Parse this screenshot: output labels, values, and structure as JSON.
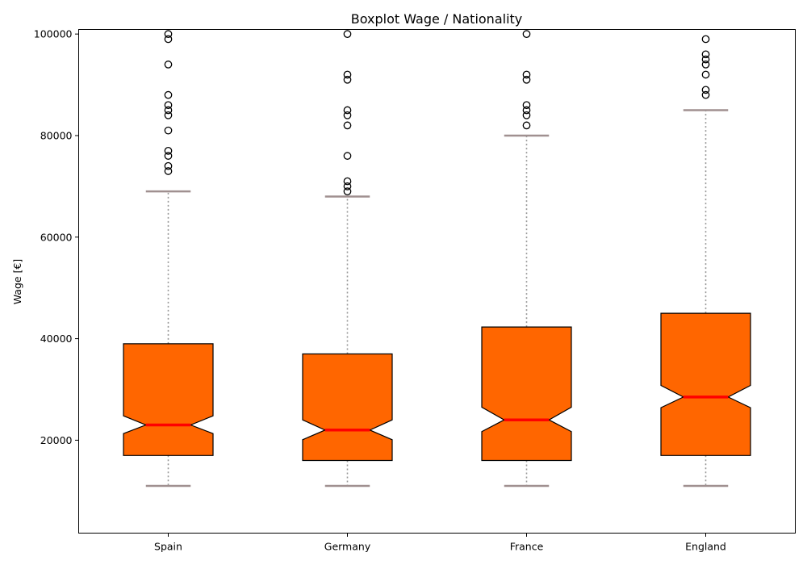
{
  "chart_data": {
    "type": "boxplot",
    "title": "Boxplot Wage / Nationality",
    "xlabel": "",
    "ylabel": "Wage [€]",
    "ylim": [
      1700,
      100900
    ],
    "yticks": [
      20000,
      40000,
      60000,
      80000,
      100000
    ],
    "notched": true,
    "grid": false,
    "colors": {
      "box_fill": "#ff6600",
      "box_edge": "#000000",
      "median": "#ff0000",
      "whisker": "#999999",
      "cap": "#a09090",
      "flier_edge": "#000000"
    },
    "categories": [
      "Spain",
      "Germany",
      "France",
      "England"
    ],
    "boxes": [
      {
        "category": "Spain",
        "whisker_low": 11000,
        "q1": 17000,
        "median": 23000,
        "q3": 39000,
        "whisker_high": 69000,
        "notch_low": 21300,
        "notch_high": 24800,
        "fliers": [
          73000,
          74000,
          76000,
          77000,
          81000,
          84000,
          85000,
          86000,
          88000,
          94000,
          99000,
          100000
        ]
      },
      {
        "category": "Germany",
        "whisker_low": 11000,
        "q1": 16000,
        "median": 22000,
        "q3": 37000,
        "whisker_high": 68000,
        "notch_low": 20100,
        "notch_high": 24000,
        "fliers": [
          69000,
          70000,
          71000,
          76000,
          82000,
          84000,
          85000,
          91000,
          92000,
          100000
        ]
      },
      {
        "category": "France",
        "whisker_low": 11000,
        "q1": 16000,
        "median": 24000,
        "q3": 42300,
        "whisker_high": 80000,
        "notch_low": 21700,
        "notch_high": 26500,
        "fliers": [
          82000,
          84000,
          85000,
          86000,
          91000,
          92000,
          100000
        ]
      },
      {
        "category": "England",
        "whisker_low": 11000,
        "q1": 17000,
        "median": 28500,
        "q3": 45000,
        "whisker_high": 85000,
        "notch_low": 26400,
        "notch_high": 30800,
        "fliers": [
          88000,
          89000,
          92000,
          94000,
          95000,
          96000,
          99000
        ]
      }
    ]
  }
}
